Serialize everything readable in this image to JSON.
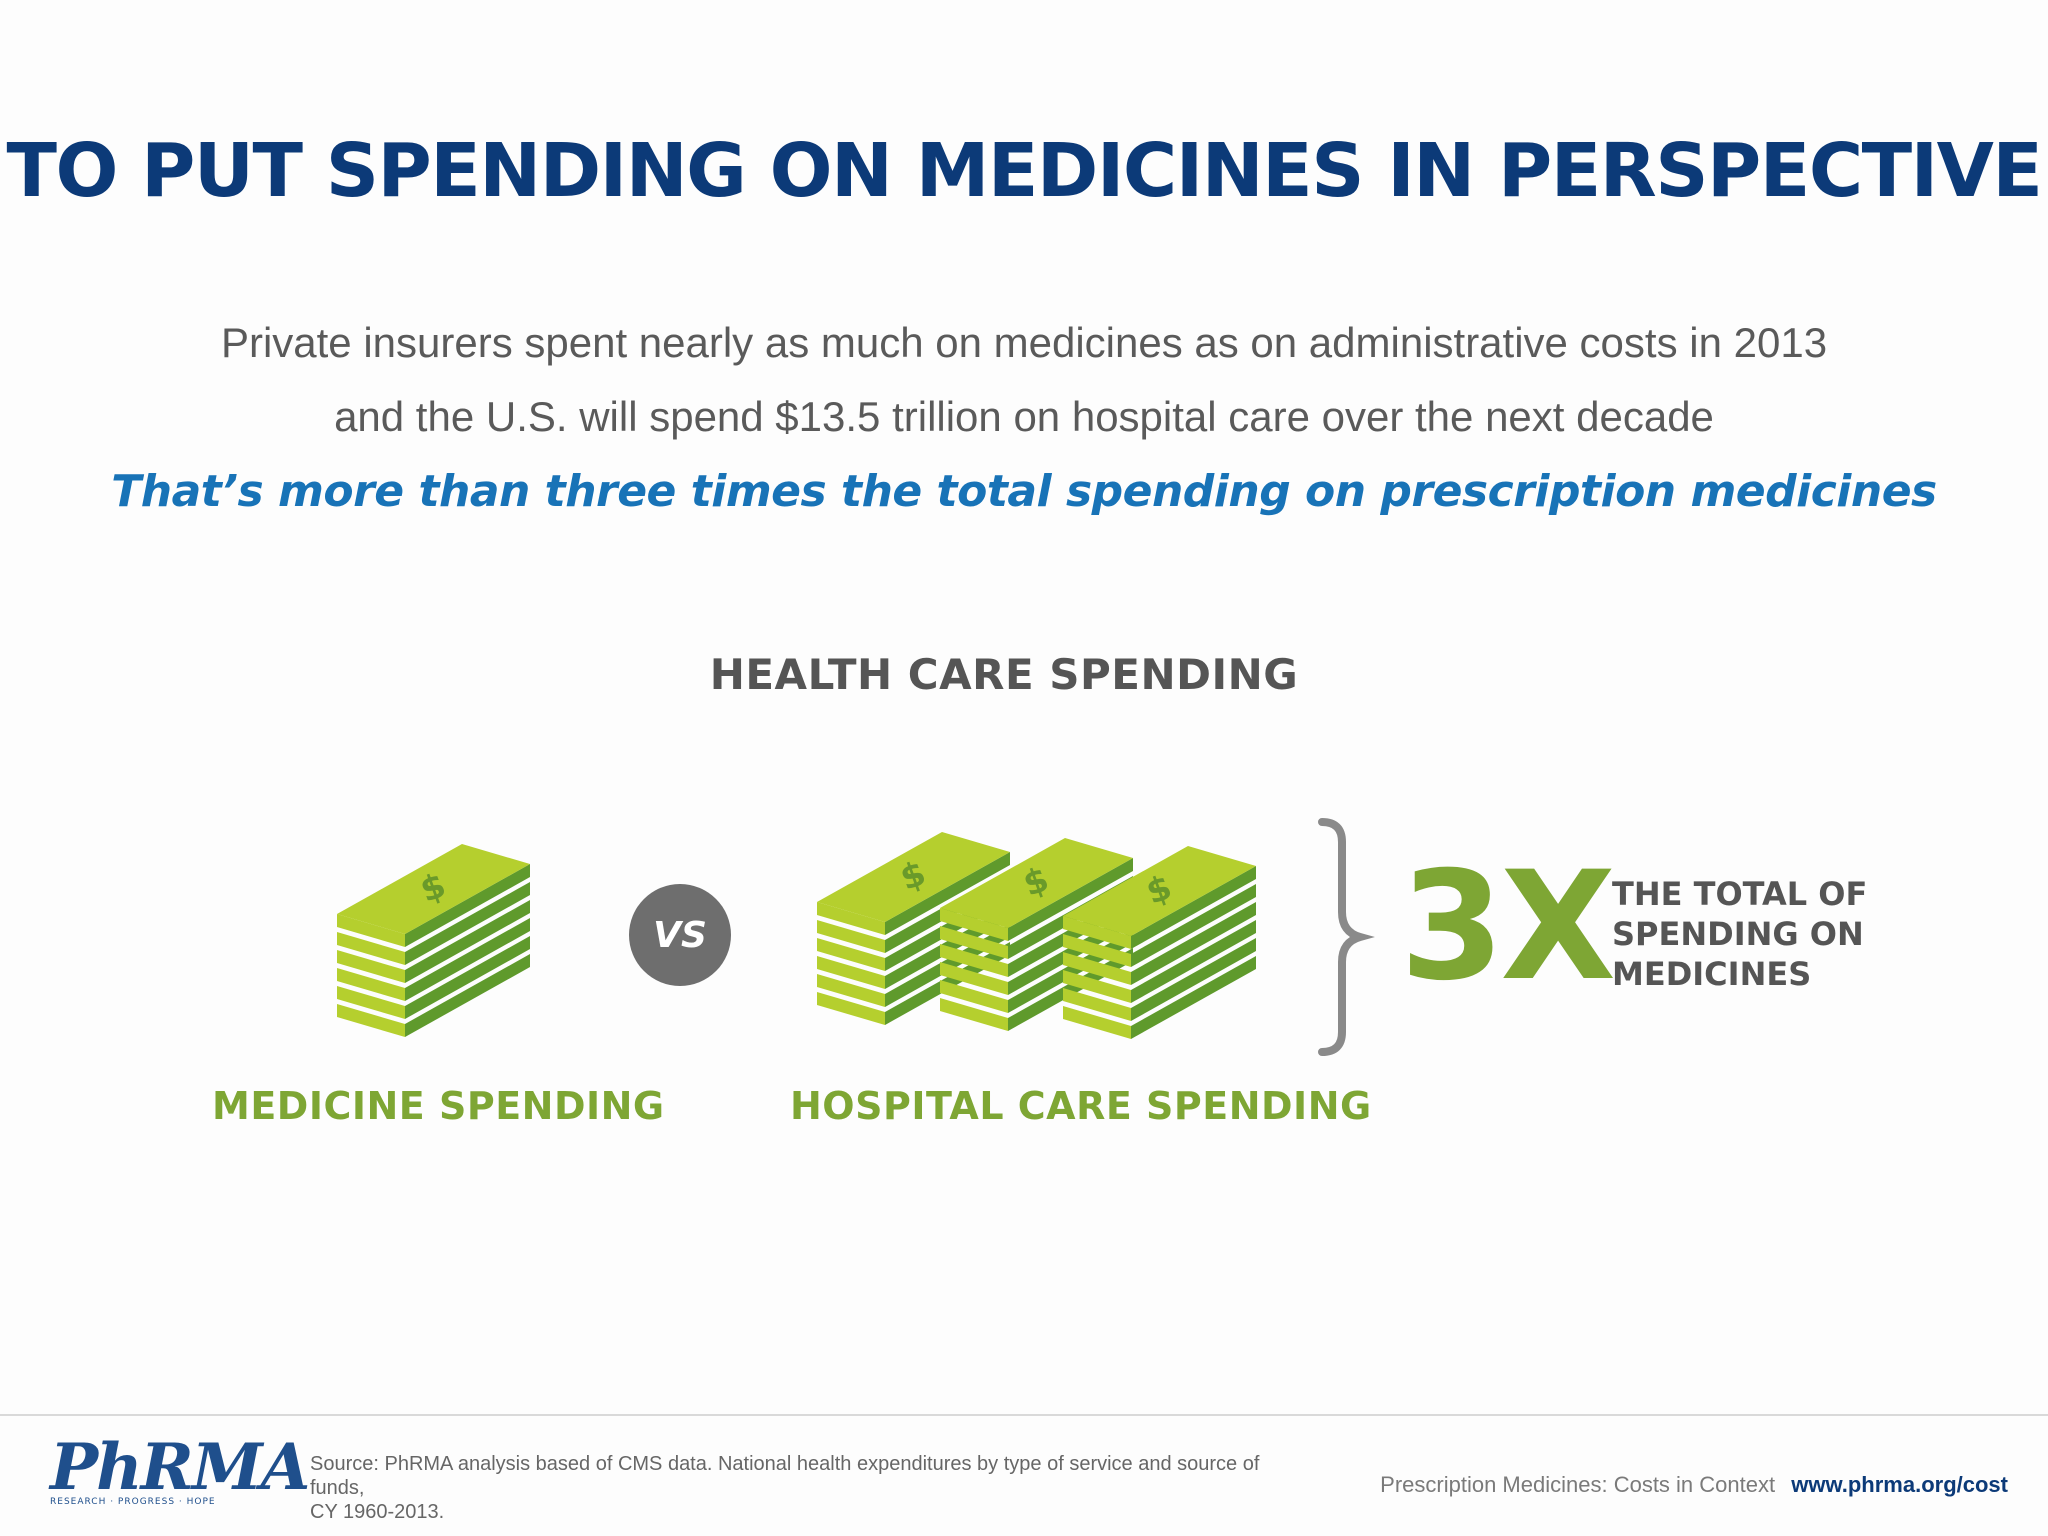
{
  "title": "TO PUT SPENDING ON MEDICINES IN PERSPECTIVE",
  "subtitle": {
    "line1": "Private insurers spent nearly as much on medicines as on administrative costs in 2013",
    "line2": "and the U.S. will spend $13.5 trillion on hospital care over the next decade"
  },
  "emphasis": "That’s more than three times the total spending on prescription medicines",
  "section_title": "HEALTH CARE SPENDING",
  "comparison": {
    "left_label": "MEDICINE SPENDING",
    "vs_label": "VS",
    "right_label": "HOSPITAL CARE SPENDING",
    "multiplier": "3X",
    "multiplier_caption": [
      "THE TOTAL OF",
      "SPENDING ON",
      "MEDICINES"
    ],
    "left_stacks": 1,
    "right_stacks": 3,
    "money_colors": {
      "light": "#b5cf2e",
      "dark": "#5f9a2c",
      "symbol": "#6a9a2a"
    },
    "bracket_color": "#8a8a8a"
  },
  "footer": {
    "logo_text": "PhRMA",
    "logo_tagline": "RESEARCH · PROGRESS · HOPE",
    "source_line1": "Source: PhRMA analysis based of CMS data. National health expenditures by type of service and source of funds,",
    "source_line2": "CY 1960-2013.",
    "document_title": "Prescription Medicines: Costs in Context",
    "url": "www.phrma.org/cost"
  }
}
